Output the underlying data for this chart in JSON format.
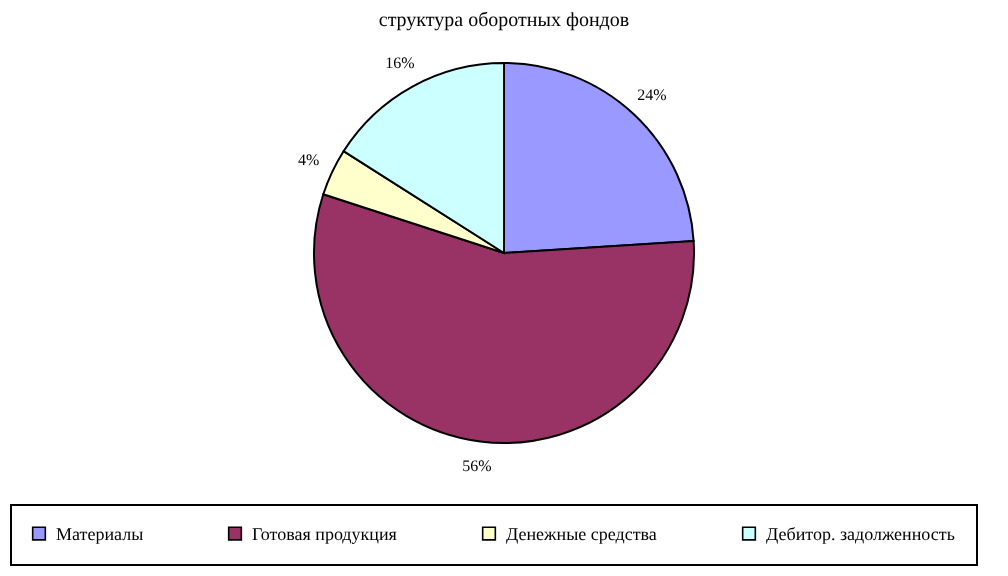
{
  "chart_data": {
    "type": "pie",
    "title": "структура оборотных фондов",
    "categories": [
      "Материалы",
      "Готовая продукция",
      "Денежные средства",
      "Дебитор. задолженность"
    ],
    "values": [
      24,
      56,
      4,
      16
    ],
    "colors": [
      "#9999ff",
      "#993366",
      "#ffffcc",
      "#ccffff"
    ],
    "value_labels": [
      "24%",
      "56%",
      "4%",
      "16%"
    ],
    "legend": "bottom"
  }
}
